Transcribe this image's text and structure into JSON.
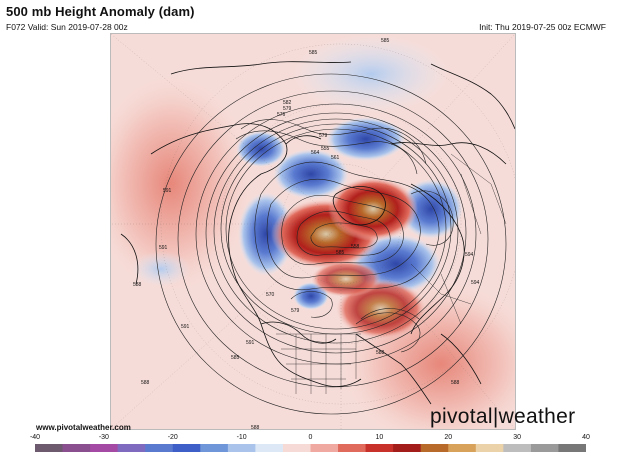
{
  "header": {
    "title": "500 mb Height Anomaly (dam)",
    "valid": "F072 Valid: Sun 2019-07-28 00z",
    "init": "Init: Thu 2019-07-25 00z ECMWF"
  },
  "footer": {
    "website": "www.pivotalweather.com",
    "brand_part1": "pivotal",
    "brand_part2": "weather"
  },
  "colorbar": {
    "ticks": [
      "-40",
      "-30",
      "-20",
      "-10",
      "0",
      "10",
      "20",
      "30",
      "40"
    ],
    "colors": [
      "#6e5a6e",
      "#8a4f8f",
      "#a44aa4",
      "#7e6bbf",
      "#5a7ad0",
      "#3f5fc8",
      "#6e96d9",
      "#a9c3eb",
      "#dde8f6",
      "#f6dad6",
      "#efa9a0",
      "#e06a5c",
      "#c8302a",
      "#a31d1b",
      "#b86a2a",
      "#d9a25a",
      "#ecd2a8",
      "#bdbdbd",
      "#9a9a9a",
      "#777777"
    ]
  },
  "contour_labels": [
    "582",
    "585",
    "579",
    "576",
    "573",
    "576",
    "579",
    "564",
    "555",
    "561",
    "558",
    "552",
    "585",
    "591",
    "588",
    "591",
    "594",
    "588",
    "591",
    "585",
    "579",
    "585",
    "588",
    "588",
    "558",
    "570",
    "588",
    "594",
    "591"
  ]
}
